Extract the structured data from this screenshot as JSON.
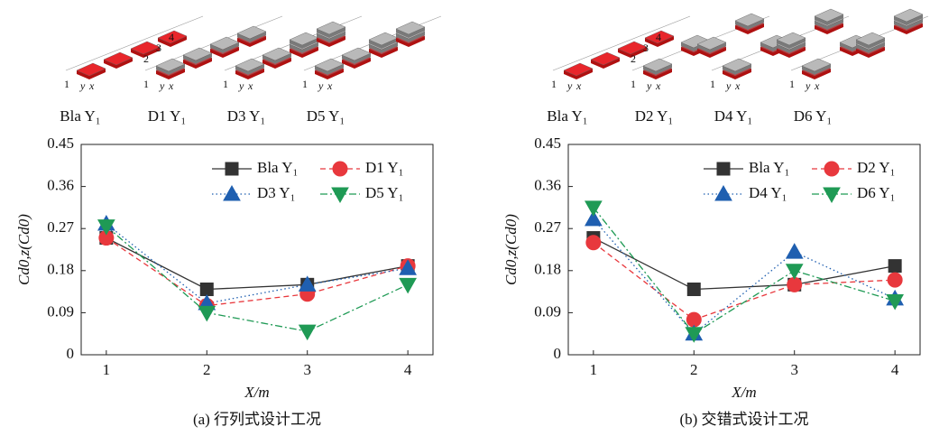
{
  "chart_data": [
    {
      "type": "line",
      "caption": "(a) 行列式设计工况",
      "x_label": "X/m",
      "y_label": "Cd0,z(Cd0)",
      "scheme_labels": [
        "Bla Y₁",
        "D1 Y₁",
        "D3 Y₁",
        "D5 Y₁"
      ],
      "scheme_numbers": [
        "1",
        "2",
        "3",
        "4"
      ],
      "scheme_axes": [
        "y",
        "x"
      ],
      "x": [
        1,
        2,
        3,
        4
      ],
      "xlim": [
        0.75,
        4.25
      ],
      "xticks": [
        1,
        2,
        3,
        4
      ],
      "ylim": [
        0,
        0.45
      ],
      "yticks": [
        0,
        0.09,
        0.18,
        0.27,
        0.36,
        0.45
      ],
      "series": [
        {
          "name": "Bla Y₁",
          "color": "#333333",
          "marker": "square",
          "dash": "solid",
          "values": [
            0.25,
            0.14,
            0.15,
            0.19
          ]
        },
        {
          "name": "D1 Y₁",
          "color": "#e8383d",
          "marker": "circle",
          "dash": "dashed",
          "values": [
            0.25,
            0.105,
            0.13,
            0.19
          ]
        },
        {
          "name": "D3 Y₁",
          "color": "#1f5fb0",
          "marker": "triangle-up",
          "dash": "dotted",
          "values": [
            0.28,
            0.11,
            0.15,
            0.185
          ]
        },
        {
          "name": "D5 Y₁",
          "color": "#1f9a55",
          "marker": "triangle-down",
          "dash": "dashdot",
          "values": [
            0.275,
            0.09,
            0.05,
            0.15
          ]
        }
      ]
    },
    {
      "type": "line",
      "caption": "(b) 交错式设计工况",
      "x_label": "X/m",
      "y_label": "Cd0,z(Cd0)",
      "scheme_labels": [
        "Bla Y₁",
        "D2 Y₁",
        "D4 Y₁",
        "D6 Y₁"
      ],
      "scheme_numbers": [
        "1",
        "2",
        "3",
        "4"
      ],
      "scheme_axes": [
        "y",
        "x"
      ],
      "x": [
        1,
        2,
        3,
        4
      ],
      "xlim": [
        0.75,
        4.25
      ],
      "xticks": [
        1,
        2,
        3,
        4
      ],
      "ylim": [
        0,
        0.45
      ],
      "yticks": [
        0,
        0.09,
        0.18,
        0.27,
        0.36,
        0.45
      ],
      "series": [
        {
          "name": "Bla Y₁",
          "color": "#333333",
          "marker": "square",
          "dash": "solid",
          "values": [
            0.25,
            0.14,
            0.15,
            0.19
          ]
        },
        {
          "name": "D2 Y₁",
          "color": "#e8383d",
          "marker": "circle",
          "dash": "dashed",
          "values": [
            0.24,
            0.075,
            0.15,
            0.16
          ]
        },
        {
          "name": "D4 Y₁",
          "color": "#1f5fb0",
          "marker": "triangle-up",
          "dash": "dotted",
          "values": [
            0.29,
            0.045,
            0.22,
            0.12
          ]
        },
        {
          "name": "D6 Y₁",
          "color": "#1f9a55",
          "marker": "triangle-down",
          "dash": "dashdot",
          "values": [
            0.315,
            0.045,
            0.18,
            0.115
          ]
        }
      ]
    }
  ]
}
